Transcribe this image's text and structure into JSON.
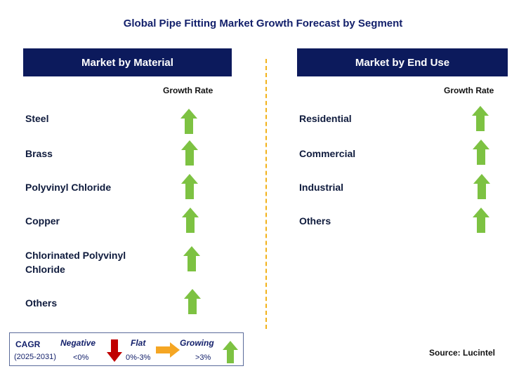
{
  "title": "Global Pipe Fitting Market Growth Forecast by Segment",
  "left_panel": {
    "header": "Market by Material",
    "column_header": "Growth Rate",
    "rows": [
      {
        "label": "Steel",
        "trend": "growing"
      },
      {
        "label": "Brass",
        "trend": "growing"
      },
      {
        "label": "Polyvinyl Chloride",
        "trend": "growing"
      },
      {
        "label": "Copper",
        "trend": "growing"
      },
      {
        "label": "Chlorinated Polyvinyl Chloride",
        "trend": "growing"
      },
      {
        "label": "Others",
        "trend": "growing"
      }
    ]
  },
  "right_panel": {
    "header": "Market by End Use",
    "column_header": "Growth Rate",
    "rows": [
      {
        "label": "Residential",
        "trend": "growing"
      },
      {
        "label": "Commercial",
        "trend": "growing"
      },
      {
        "label": "Industrial",
        "trend": "growing"
      },
      {
        "label": "Others",
        "trend": "growing"
      }
    ]
  },
  "legend": {
    "cagr_label": "CAGR",
    "period": "(2025-2031)",
    "negative_label": "Negative",
    "negative_range": "<0%",
    "flat_label": "Flat",
    "flat_range": "0%-3%",
    "growing_label": "Growing",
    "growing_range": ">3%"
  },
  "source": "Source: Lucintel",
  "colors": {
    "header_bg": "#0c1a5c",
    "growing": "#7dc242",
    "negative": "#c00000",
    "flat": "#f5a623",
    "divider": "#f2b21a"
  }
}
